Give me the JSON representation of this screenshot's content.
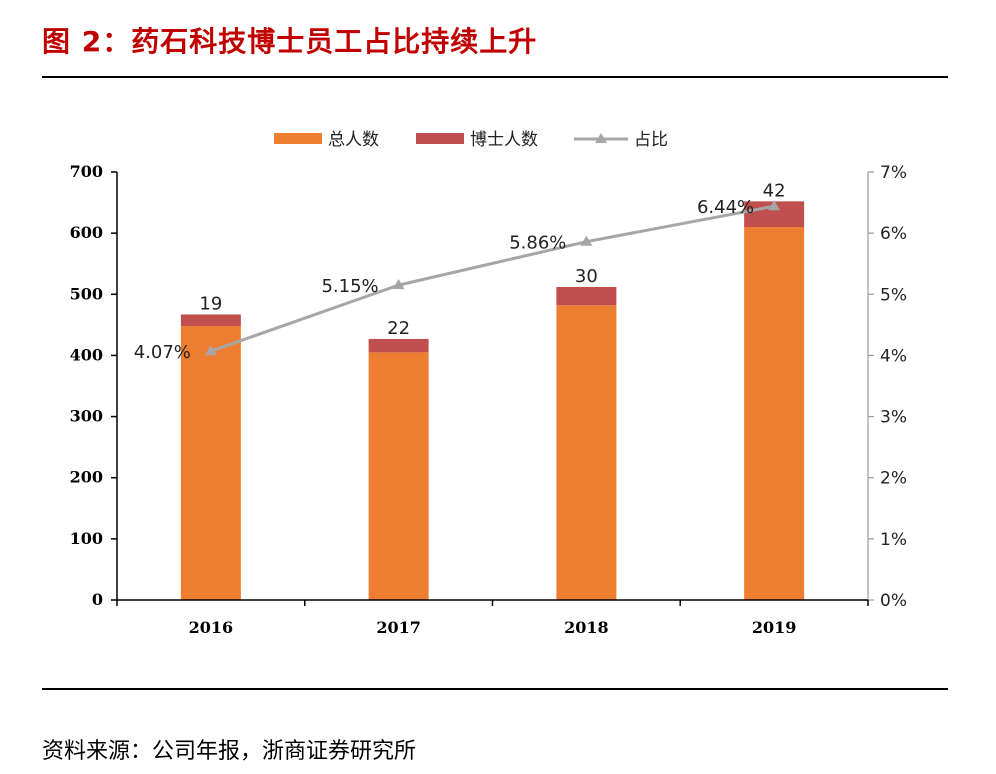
{
  "figure": {
    "title": "图 2：药石科技博士员工占比持续上升",
    "source": "资料来源：公司年报，浙商证券研究所"
  },
  "colors": {
    "title": "#c00000",
    "total_bar": "#ed7d31",
    "phd_bar": "#c0504d",
    "ratio_line": "#a6a6a6"
  },
  "chart_data": {
    "type": "bar",
    "stacked": true,
    "categories": [
      "2016",
      "2017",
      "2018",
      "2019"
    ],
    "series": [
      {
        "name": "总人数",
        "values": [
          448,
          405,
          482,
          610
        ],
        "color": "#ed7d31",
        "axis": "left"
      },
      {
        "name": "博士人数",
        "values": [
          19,
          22,
          30,
          42
        ],
        "color": "#c0504d",
        "axis": "left",
        "labels": [
          "19",
          "22",
          "30",
          "42"
        ]
      },
      {
        "name": "占比",
        "type": "line",
        "values": [
          4.07,
          5.15,
          5.86,
          6.44
        ],
        "color": "#a6a6a6",
        "axis": "right",
        "labels": [
          "4.07%",
          "5.15%",
          "5.86%",
          "6.44%"
        ]
      }
    ],
    "y_left": {
      "lim": [
        0,
        700
      ],
      "ticks": [
        "0",
        "100",
        "200",
        "300",
        "400",
        "500",
        "600",
        "700"
      ]
    },
    "y_right": {
      "lim": [
        0,
        7
      ],
      "ticks": [
        "0%",
        "1%",
        "2%",
        "3%",
        "4%",
        "5%",
        "6%",
        "7%"
      ]
    },
    "legend": {
      "position": "top-center",
      "entries": [
        "总人数",
        "博士人数",
        "占比"
      ]
    },
    "grid": false
  }
}
